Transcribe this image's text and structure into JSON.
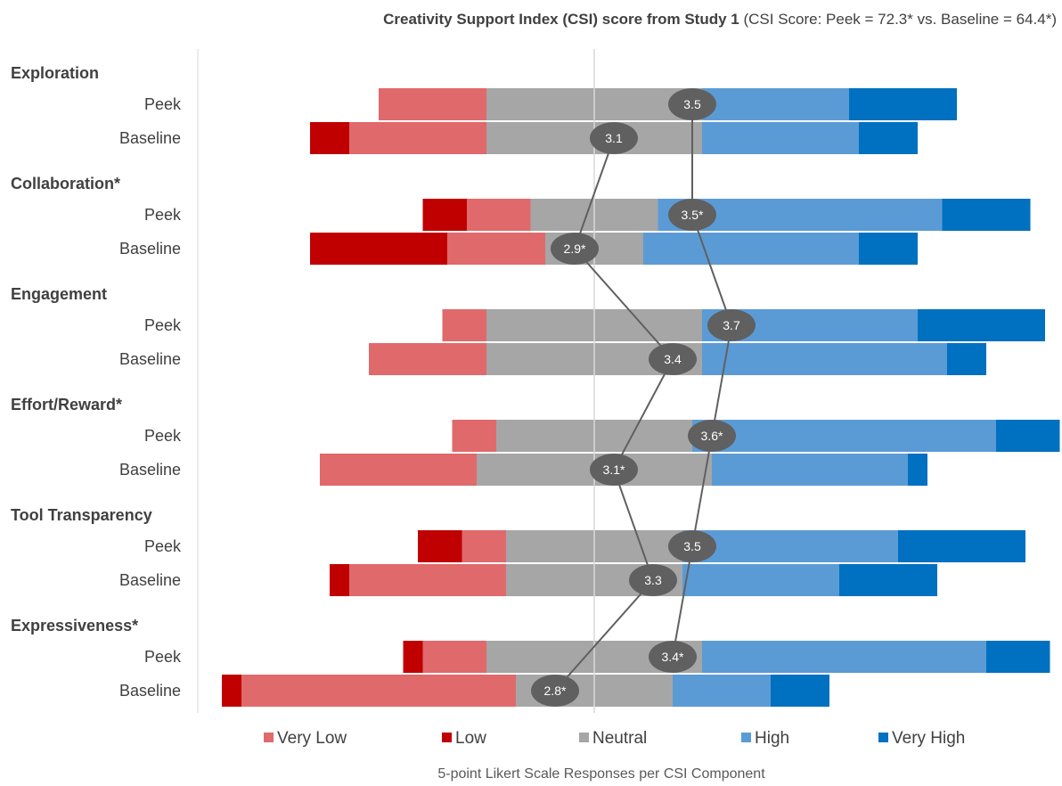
{
  "chart_data": {
    "type": "bar",
    "subtype": "diverging-stacked-bar",
    "title": "Creativity Support Index (CSI) score from Study 1",
    "subtitle": "(CSI Score: Peek = 72.3* vs. Baseline = 64.4*)",
    "xlabel": "5-point Likert Scale Responses per CSI Component",
    "levels": [
      "Very Low",
      "Low",
      "Neutral",
      "High",
      "Very High"
    ],
    "colors": {
      "Very Low": "#e0696c",
      "Low": "#c00000",
      "Neutral": "#a6a6a6",
      "High": "#5b9bd5",
      "Very High": "#0070c0",
      "mean_marker": "#606060",
      "mean_line": "#606060",
      "center_line": "#d9d9d9"
    },
    "legend_position": "bottom",
    "groups": [
      {
        "name": "Exploration",
        "rows": [
          {
            "label": "Peek",
            "Very Low": 11,
            "Low": 0,
            "Neutral": 22,
            "High": 15,
            "Very High": 11,
            "mean": "3.5"
          },
          {
            "label": "Baseline",
            "Very Low": 14,
            "Low": 4,
            "Neutral": 22,
            "High": 16,
            "Very High": 6,
            "mean": "3.1"
          }
        ]
      },
      {
        "name": "Collaboration*",
        "rows": [
          {
            "label": "Peek",
            "Very Low": 6.5,
            "Low": 4.5,
            "Neutral": 13,
            "High": 29,
            "Very High": 9,
            "mean": "3.5*"
          },
          {
            "label": "Baseline",
            "Very Low": 10,
            "Low": 14,
            "Neutral": 10,
            "High": 22,
            "Very High": 6,
            "mean": "2.9*"
          }
        ]
      },
      {
        "name": "Engagement",
        "rows": [
          {
            "label": "Peek",
            "Very Low": 4.5,
            "Low": 0,
            "Neutral": 22,
            "High": 22,
            "Very High": 13,
            "mean": "3.7"
          },
          {
            "label": "Baseline",
            "Very Low": 12,
            "Low": 0,
            "Neutral": 22,
            "High": 25,
            "Very High": 4,
            "mean": "3.4"
          }
        ]
      },
      {
        "name": "Effort/Reward*",
        "rows": [
          {
            "label": "Peek",
            "Very Low": 4.5,
            "Low": 0,
            "Neutral": 20,
            "High": 31,
            "Very High": 6.5,
            "mean": "3.6*"
          },
          {
            "label": "Baseline",
            "Very Low": 16,
            "Low": 0,
            "Neutral": 24,
            "High": 20,
            "Very High": 2,
            "mean": "3.1*"
          }
        ]
      },
      {
        "name": "Tool Transparency",
        "rows": [
          {
            "label": "Peek",
            "Very Low": 4.5,
            "Low": 4.5,
            "Neutral": 18,
            "High": 22,
            "Very High": 13,
            "mean": "3.5"
          },
          {
            "label": "Baseline",
            "Very Low": 16,
            "Low": 2,
            "Neutral": 18,
            "High": 16,
            "Very High": 10,
            "mean": "3.3"
          }
        ]
      },
      {
        "name": "Expressiveness*",
        "rows": [
          {
            "label": "Peek",
            "Very Low": 6.5,
            "Low": 2,
            "Neutral": 22,
            "High": 29,
            "Very High": 6.5,
            "mean": "3.4*"
          },
          {
            "label": "Baseline",
            "Very Low": 28,
            "Low": 2,
            "Neutral": 16,
            "High": 10,
            "Very High": 6,
            "mean": "2.8*"
          }
        ]
      }
    ]
  }
}
